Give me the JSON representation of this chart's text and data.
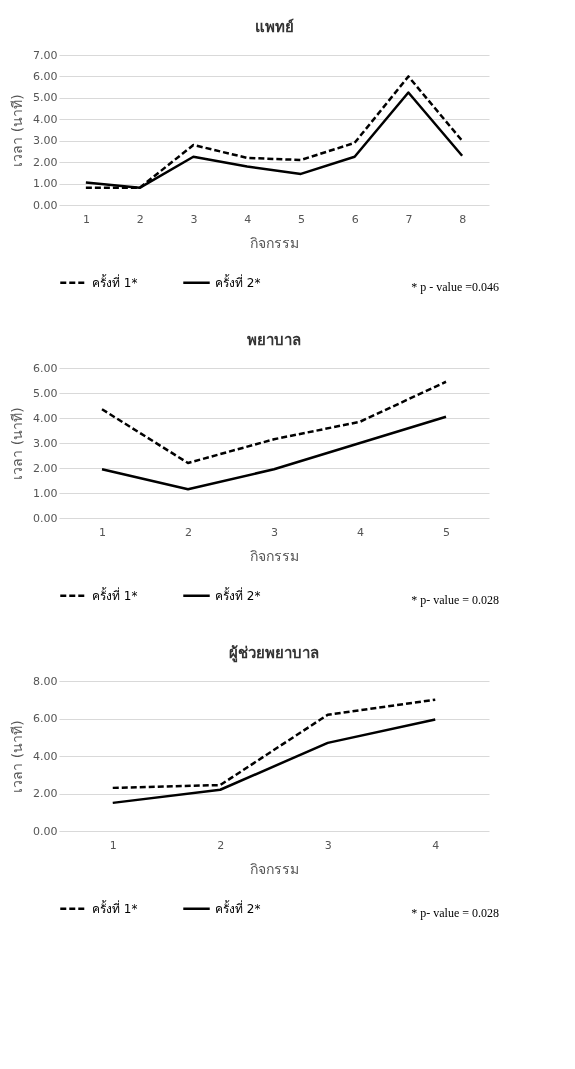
{
  "chart_data": [
    {
      "type": "line",
      "title": "แพทย์",
      "xlabel": "กิจกรรม",
      "ylabel": "เวลา (นาที)",
      "categories": [
        "1",
        "2",
        "3",
        "4",
        "5",
        "6",
        "7",
        "8"
      ],
      "series": [
        {
          "name": "ครั้งที่ 1*",
          "color": "#000000",
          "line_style": "dashed",
          "values": [
            0.8,
            0.8,
            2.8,
            2.2,
            2.1,
            2.9,
            6.0,
            3.0
          ]
        },
        {
          "name": "ครั้งที่ 2*",
          "color": "#000000",
          "line_style": "solid",
          "values": [
            1.05,
            0.8,
            2.25,
            1.8,
            1.45,
            2.25,
            5.25,
            2.3
          ]
        }
      ],
      "ylim": [
        0,
        7
      ],
      "yticks": [
        {
          "value": 0,
          "label": "0.00"
        },
        {
          "value": 1,
          "label": "1.00"
        },
        {
          "value": 2,
          "label": "2.00"
        },
        {
          "value": 3,
          "label": "3.00"
        },
        {
          "value": 4,
          "label": "4.00"
        },
        {
          "value": 5,
          "label": "5.00"
        },
        {
          "value": 6,
          "label": "6.00"
        },
        {
          "value": 7,
          "label": "7.00"
        }
      ],
      "grid": "y",
      "legend": "bottom",
      "annotations": [
        "* p - value =0.046"
      ]
    },
    {
      "type": "line",
      "title": "พยาบาล",
      "xlabel": "กิจกรรม",
      "ylabel": "เวลา (นาที)",
      "categories": [
        "1",
        "2",
        "3",
        "4",
        "5"
      ],
      "series": [
        {
          "name": "ครั้งที่ 1*",
          "color": "#000000",
          "line_style": "dashed",
          "values": [
            4.35,
            2.2,
            3.15,
            3.85,
            5.45
          ]
        },
        {
          "name": "ครั้งที่ 2*",
          "color": "#000000",
          "line_style": "solid",
          "values": [
            1.95,
            1.15,
            1.95,
            3.0,
            4.05
          ]
        }
      ],
      "ylim": [
        0,
        6
      ],
      "yticks": [
        {
          "value": 0,
          "label": "0.00"
        },
        {
          "value": 1,
          "label": "1.00"
        },
        {
          "value": 2,
          "label": "2.00"
        },
        {
          "value": 3,
          "label": "3.00"
        },
        {
          "value": 4,
          "label": "4.00"
        },
        {
          "value": 5,
          "label": "5.00"
        },
        {
          "value": 6,
          "label": "6.00"
        }
      ],
      "grid": "y",
      "legend": "bottom",
      "annotations": [
        "* p- value = 0.028"
      ]
    },
    {
      "type": "line",
      "title": "ผู้ช่วยพยาบาล",
      "xlabel": "กิจกรรม",
      "ylabel": "เวลา (นาที)",
      "categories": [
        "1",
        "2",
        "3",
        "4"
      ],
      "series": [
        {
          "name": "ครั้งที่ 1*",
          "color": "#000000",
          "line_style": "dashed",
          "values": [
            2.3,
            2.45,
            6.2,
            7.0
          ]
        },
        {
          "name": "ครั้งที่ 2*",
          "color": "#000000",
          "line_style": "solid",
          "values": [
            1.5,
            2.2,
            4.7,
            5.95
          ]
        }
      ],
      "ylim": [
        0,
        8
      ],
      "yticks": [
        {
          "value": 0,
          "label": "0.00"
        },
        {
          "value": 2,
          "label": "2.00"
        },
        {
          "value": 4,
          "label": "4.00"
        },
        {
          "value": 6,
          "label": "6.00"
        },
        {
          "value": 8,
          "label": "8.00"
        }
      ],
      "grid": "y",
      "legend": "bottom",
      "annotations": [
        "* p- value = 0.028"
      ]
    }
  ]
}
